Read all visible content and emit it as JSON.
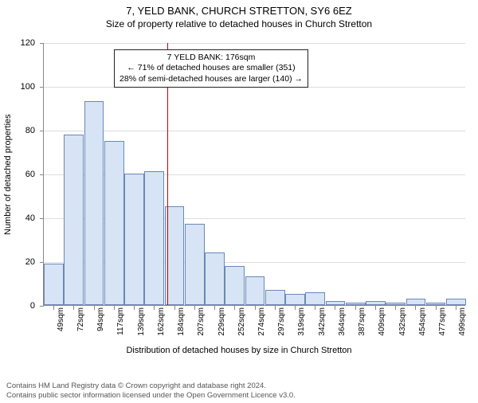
{
  "title": "7, YELD BANK, CHURCH STRETTON, SY6 6EZ",
  "subtitle": "Size of property relative to detached houses in Church Stretton",
  "y_axis": {
    "title": "Number of detached properties",
    "min": 0,
    "max": 120,
    "step": 20,
    "ticks": [
      0,
      20,
      40,
      60,
      80,
      100,
      120
    ]
  },
  "x_axis": {
    "title": "Distribution of detached houses by size in Church Stretton",
    "labels": [
      "49sqm",
      "72sqm",
      "94sqm",
      "117sqm",
      "139sqm",
      "162sqm",
      "184sqm",
      "207sqm",
      "229sqm",
      "252sqm",
      "274sqm",
      "297sqm",
      "319sqm",
      "342sqm",
      "364sqm",
      "387sqm",
      "409sqm",
      "432sqm",
      "454sqm",
      "477sqm",
      "499sqm"
    ]
  },
  "bars": {
    "values": [
      19,
      78,
      93,
      75,
      60,
      61,
      45,
      37,
      24,
      18,
      13,
      7,
      5,
      6,
      2,
      1,
      2,
      1,
      3,
      1,
      3
    ],
    "fill_color": "#d6e4f5",
    "border_color": "#6a88b7",
    "width_ratio": 0.98
  },
  "marker": {
    "x_value": 176,
    "color": "#cc0000"
  },
  "annotation": {
    "lines": [
      "7 YELD BANK: 176sqm",
      "← 71% of detached houses are smaller (351)",
      "28% of semi-detached houses are larger (140) →"
    ],
    "x_center_value": 225,
    "y_top_value": 117
  },
  "footer": {
    "line1": "Contains HM Land Registry data © Crown copyright and database right 2024.",
    "line2": "Contains public sector information licensed under the Open Government Licence v3.0."
  },
  "style": {
    "grid_color": "#dddddd",
    "axis_color": "#888888",
    "background": "#ffffff",
    "title_fontsize": 13,
    "subtitle_fontsize": 12,
    "label_fontsize": 11,
    "tick_fontsize": 10
  }
}
